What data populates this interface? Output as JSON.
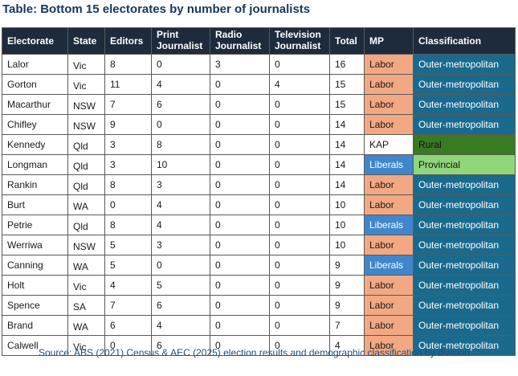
{
  "title": "Table: Bottom 15 electorates by number of journalists",
  "headers": {
    "electorate": "Electorate",
    "state": "State",
    "editors": "Editors",
    "print": "Print Journalist",
    "radio": "Radio Journalist",
    "television": "Television Journalist",
    "total": "Total",
    "mp": "MP",
    "classification": "Classification"
  },
  "rows": [
    {
      "electorate": "Lalor",
      "state": "Vic",
      "editors": "8",
      "print": "0",
      "radio": "3",
      "television": "0",
      "total": "16",
      "mp": "Labor",
      "classification": "Outer-metropolitan"
    },
    {
      "electorate": "Gorton",
      "state": "Vic",
      "editors": "11",
      "print": "4",
      "radio": "0",
      "television": "4",
      "total": "15",
      "mp": "Labor",
      "classification": "Outer-metropolitan"
    },
    {
      "electorate": "Macarthur",
      "state": "NSW",
      "editors": "7",
      "print": "6",
      "radio": "0",
      "television": "0",
      "total": "15",
      "mp": "Labor",
      "classification": "Outer-metropolitan"
    },
    {
      "electorate": "Chifley",
      "state": "NSW",
      "editors": "9",
      "print": "0",
      "radio": "0",
      "television": "0",
      "total": "14",
      "mp": "Labor",
      "classification": "Outer-metropolitan"
    },
    {
      "electorate": "Kennedy",
      "state": "Qld",
      "editors": "3",
      "print": "8",
      "radio": "0",
      "television": "0",
      "total": "14",
      "mp": "KAP",
      "classification": "Rural"
    },
    {
      "electorate": "Longman",
      "state": "Qld",
      "editors": "3",
      "print": "10",
      "radio": "0",
      "television": "0",
      "total": "14",
      "mp": "Liberals",
      "classification": "Provincial"
    },
    {
      "electorate": "Rankin",
      "state": "Qld",
      "editors": "8",
      "print": "3",
      "radio": "0",
      "television": "0",
      "total": "14",
      "mp": "Labor",
      "classification": "Outer-metropolitan"
    },
    {
      "electorate": "Burt",
      "state": "WA",
      "editors": "0",
      "print": "4",
      "radio": "0",
      "television": "0",
      "total": "10",
      "mp": "Labor",
      "classification": "Outer-metropolitan"
    },
    {
      "electorate": "Petrie",
      "state": "Qld",
      "editors": "8",
      "print": "4",
      "radio": "0",
      "television": "0",
      "total": "10",
      "mp": "Liberals",
      "classification": "Outer-metropolitan"
    },
    {
      "electorate": "Werriwa",
      "state": "NSW",
      "editors": "5",
      "print": "3",
      "radio": "0",
      "television": "0",
      "total": "10",
      "mp": "Labor",
      "classification": "Outer-metropolitan"
    },
    {
      "electorate": "Canning",
      "state": "WA",
      "editors": "5",
      "print": "0",
      "radio": "0",
      "television": "0",
      "total": "9",
      "mp": "Liberals",
      "classification": "Outer-metropolitan"
    },
    {
      "electorate": "Holt",
      "state": "Vic",
      "editors": "4",
      "print": "5",
      "radio": "0",
      "television": "0",
      "total": "9",
      "mp": "Labor",
      "classification": "Outer-metropolitan"
    },
    {
      "electorate": "Spence",
      "state": "SA",
      "editors": "7",
      "print": "6",
      "radio": "0",
      "television": "0",
      "total": "9",
      "mp": "Labor",
      "classification": "Outer-metropolitan"
    },
    {
      "electorate": "Brand",
      "state": "WA",
      "editors": "6",
      "print": "4",
      "radio": "0",
      "television": "0",
      "total": "7",
      "mp": "Labor",
      "classification": "Outer-metropolitan"
    },
    {
      "electorate": "Calwell",
      "state": "Vic",
      "editors": "0",
      "print": "6",
      "radio": "0",
      "television": "0",
      "total": "4",
      "mp": "Labor",
      "classification": "Outer-metropolitan"
    }
  ],
  "colors": {
    "header_bg": "#1d2b3d",
    "labor": "#f2a882",
    "liberals": "#3f86cc",
    "outer_metropolitan": "#1a6a8e",
    "rural": "#3a7a23",
    "provincial": "#90d67a"
  },
  "source": "Source: ABS (2021) Census & AEC (2025) election results and demographic classification by division"
}
